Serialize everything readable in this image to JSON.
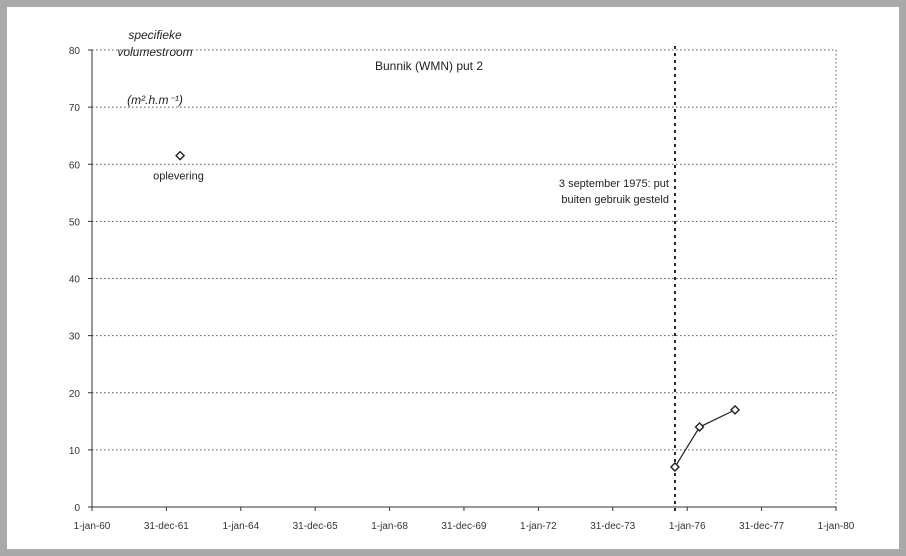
{
  "chart_data": {
    "type": "line",
    "title": "Bunnik (WMN) put 2",
    "ylabel_lines": [
      "specifieke",
      "volumestroom",
      "(m².h.m⁻¹)"
    ],
    "xlabel": "",
    "ylim": [
      0,
      80
    ],
    "yticks": [
      0,
      10,
      20,
      30,
      40,
      50,
      60,
      70,
      80
    ],
    "xlim": [
      "1960-01-01",
      "1980-01-01"
    ],
    "xticks": [
      "1960-01-01",
      "1961-12-31",
      "1964-01-01",
      "1965-12-31",
      "1968-01-01",
      "1969-12-31",
      "1972-01-01",
      "1973-12-31",
      "1976-01-01",
      "1977-12-31",
      "1980-01-01"
    ],
    "xtick_labels": [
      "1-jan-60",
      "31-dec-61",
      "1-jan-64",
      "31-dec-65",
      "1-jan-68",
      "31-dec-69",
      "1-jan-72",
      "31-dec-73",
      "1-jan-76",
      "31-dec-77",
      "1-jan-80"
    ],
    "grid": "horizontal dotted",
    "series": [
      {
        "points": [
          {
            "x": "1962-05-15",
            "y": 61.5
          },
          {
            "x": "1975-09-03",
            "y": 7
          },
          {
            "x": "1976-05-01",
            "y": 14
          },
          {
            "x": "1977-04-15",
            "y": 17
          }
        ],
        "line_from_index": 1,
        "color": "#222222"
      }
    ],
    "vertical_marker": {
      "x": "1975-09-03",
      "style": "dashed"
    },
    "annotations": [
      {
        "lines": [
          "oplevering"
        ],
        "x": "1962-05-15",
        "y": 61.5
      },
      {
        "lines": [
          "3 september 1975: put",
          "buiten gebruik gesteld"
        ],
        "x": "1975-09-03",
        "y": 55
      }
    ]
  },
  "colors": {
    "frame": "#a9a9a9",
    "grid": "#555555",
    "marker": "#222222"
  }
}
